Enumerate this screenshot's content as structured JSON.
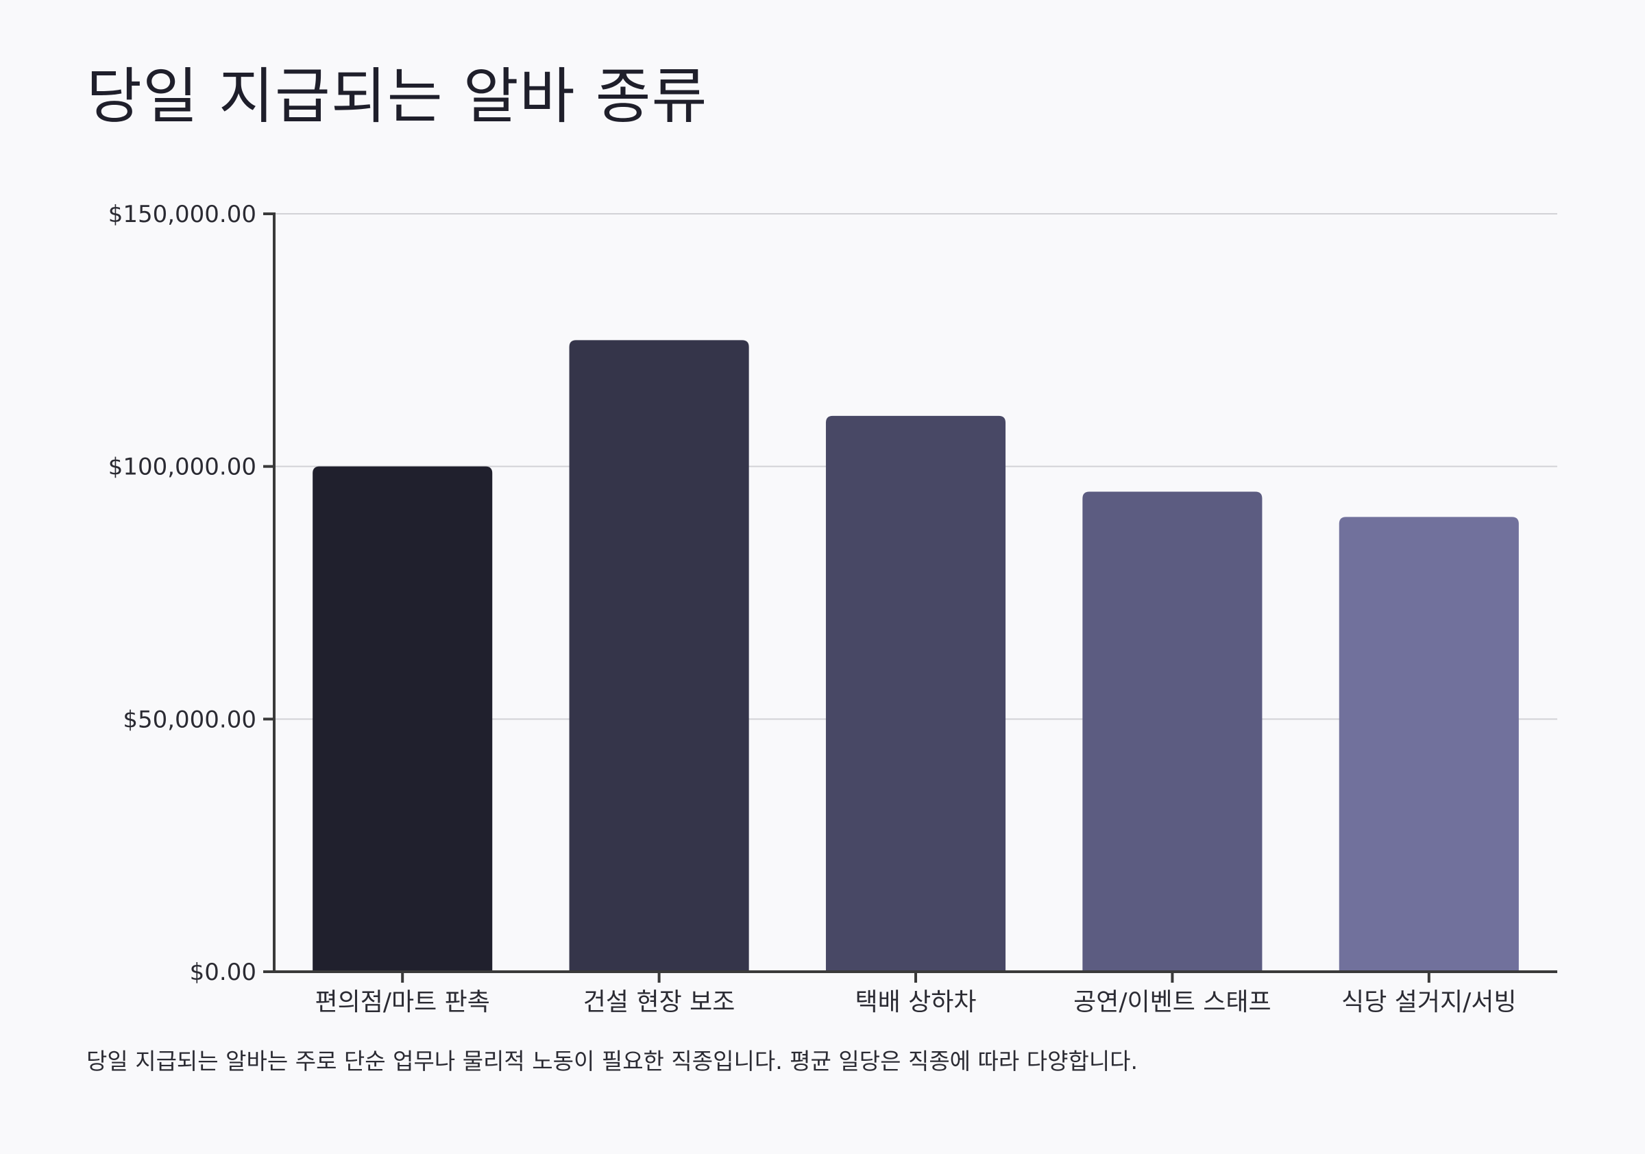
{
  "chart_data": {
    "type": "bar",
    "title": "당일 지급되는 알바 종류",
    "footnote": "당일 지급되는 알바는 주로 단순 업무나 물리적 노동이 필요한 직종입니다. 평균 일당은 직종에 따라 다양합니다.",
    "xlabel": "",
    "ylabel": "",
    "categories": [
      "편의점/마트 판촉",
      "건설 현장 보조",
      "택배 상하차",
      "공연/이벤트 스태프",
      "식당 설거지/서빙"
    ],
    "values": [
      100000,
      125000,
      110000,
      95000,
      90000
    ],
    "ylim": [
      0,
      150000
    ],
    "yticks": [
      0,
      50000,
      100000,
      150000
    ],
    "ytick_labels": [
      "$0.00",
      "$50,000.00",
      "$100,000.00",
      "$150,000.00"
    ],
    "grid": true,
    "colors": [
      "#20202d",
      "#35354a",
      "#484865",
      "#5c5c81",
      "#71719c"
    ],
    "axis_color": "#3a3a3a",
    "grid_color": "#d2d2d6"
  }
}
